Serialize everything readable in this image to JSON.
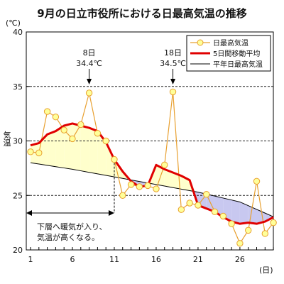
{
  "chart_data": {
    "type": "line",
    "title": "9月の日立市役所における日最高気温の推移",
    "ylabel": "気温",
    "y_unit": "(℃)",
    "x_unit": "(日)",
    "ylim": [
      20,
      40
    ],
    "xlim": [
      1,
      30
    ],
    "y_ticks": [
      20,
      25,
      30,
      35,
      40
    ],
    "x_ticks": [
      1,
      6,
      11,
      16,
      21,
      26
    ],
    "grid": "dashed horizontal lines at 25, 30, 35",
    "legend_position": "top-right",
    "x": [
      1,
      2,
      3,
      4,
      5,
      6,
      7,
      8,
      9,
      10,
      11,
      12,
      13,
      14,
      15,
      16,
      17,
      18,
      19,
      20,
      21,
      22,
      23,
      24,
      25,
      26,
      27,
      28,
      29,
      30
    ],
    "series": [
      {
        "name": "日最高気温",
        "color": "#e8a030",
        "marker_fill": "#ffff99",
        "values": [
          29.0,
          28.9,
          32.7,
          32.2,
          31.0,
          30.2,
          31.5,
          34.4,
          30.7,
          30.0,
          28.3,
          25.0,
          26.0,
          25.8,
          25.9,
          25.6,
          27.8,
          34.5,
          23.7,
          24.3,
          24.1,
          25.1,
          23.5,
          23.1,
          22.4,
          20.6,
          21.8,
          26.3,
          21.5,
          22.5
        ]
      },
      {
        "name": "5日間移動平均",
        "color": "#e00000",
        "values": [
          29.6,
          29.8,
          30.6,
          30.9,
          31.4,
          31.6,
          31.4,
          31.2,
          30.9,
          29.9,
          28.3,
          27.2,
          26.3,
          25.8,
          25.9,
          27.8,
          27.4,
          27.1,
          26.8,
          26.4,
          24.1,
          23.8,
          23.5,
          23.0,
          22.6,
          22.4,
          22.5,
          22.4,
          22.6,
          23.0
        ]
      },
      {
        "name": "平年日最高気温",
        "color": "#000000",
        "values": [
          28.0,
          27.88,
          27.76,
          27.64,
          27.52,
          27.4,
          27.26,
          27.12,
          26.98,
          26.84,
          26.7,
          26.56,
          26.42,
          26.28,
          26.14,
          26.0,
          25.86,
          25.72,
          25.58,
          25.44,
          25.3,
          25.12,
          24.94,
          24.76,
          24.58,
          24.4,
          24.06,
          23.72,
          23.38,
          23.04
        ]
      }
    ],
    "fill_above_normal_color": "#ffffcc",
    "fill_below_normal_color": "#c8c8f0",
    "annotations": [
      {
        "label": "8日",
        "value_label": "34.4℃",
        "x": 8
      },
      {
        "label": "18日",
        "value_label": "34.5℃",
        "x": 18
      }
    ],
    "range_note": {
      "text_line1": "下層へ暖気が入り、",
      "text_line2": "気温が高くなる。",
      "x_start": 1,
      "x_end": 11
    }
  }
}
